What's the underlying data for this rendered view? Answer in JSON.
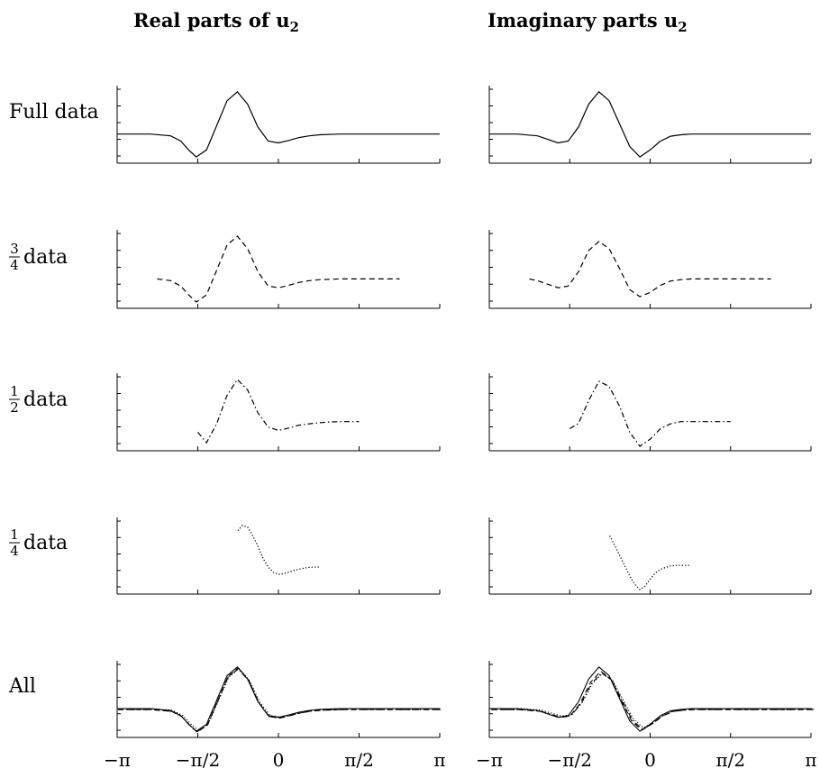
{
  "column_titles": {
    "left_title": "Real parts of ",
    "left_symbol": "u",
    "left_subscript": "2",
    "right_title": "Imaginary parts ",
    "right_symbol": "u",
    "right_subscript": "2"
  },
  "row_labels": [
    {
      "text": "Full data"
    },
    {
      "numerator": "3",
      "denominator": "4",
      "text": " data"
    },
    {
      "numerator": "1",
      "denominator": "2",
      "text": " data"
    },
    {
      "numerator": "1",
      "denominator": "4",
      "text": " data"
    },
    {
      "text": "All"
    }
  ],
  "chart_data": {
    "type": "line",
    "x_range": [
      -3.14159,
      3.14159
    ],
    "x_tick_labels": [
      "−π",
      "−π/2",
      "0",
      "π/2",
      "π"
    ],
    "x_ticks": [
      -3.14159,
      -1.5708,
      0,
      1.5708,
      3.14159
    ],
    "y_range": [
      -0.75,
      1.3
    ],
    "grid": false,
    "line_styles": {
      "full": "solid",
      "three_quarter": "dashed",
      "half": "dash-dot",
      "quarter": "dotted"
    },
    "panels": [
      {
        "row": "Full data",
        "part": "real",
        "style": "full",
        "x": [
          -3.14,
          -2.5,
          -2.1,
          -1.9,
          -1.75,
          -1.6,
          -1.4,
          -1.2,
          -1.0,
          -0.8,
          -0.6,
          -0.4,
          -0.2,
          0.0,
          0.2,
          0.4,
          0.6,
          0.8,
          1.2,
          2.0,
          3.14
        ],
        "y": [
          0,
          0,
          -0.05,
          -0.2,
          -0.45,
          -0.65,
          -0.45,
          0.25,
          0.95,
          1.2,
          0.85,
          0.2,
          -0.2,
          -0.25,
          -0.18,
          -0.1,
          -0.05,
          -0.02,
          0,
          0,
          0
        ]
      },
      {
        "row": "Full data",
        "part": "imag",
        "style": "full",
        "x": [
          -3.14,
          -2.6,
          -2.2,
          -2.0,
          -1.8,
          -1.6,
          -1.4,
          -1.2,
          -1.0,
          -0.8,
          -0.6,
          -0.4,
          -0.2,
          0.0,
          0.2,
          0.4,
          0.6,
          0.8,
          1.2,
          2.0,
          3.14
        ],
        "y": [
          0,
          0,
          -0.05,
          -0.15,
          -0.25,
          -0.2,
          0.2,
          0.85,
          1.2,
          0.95,
          0.3,
          -0.35,
          -0.65,
          -0.45,
          -0.2,
          -0.06,
          -0.02,
          0,
          0,
          0,
          0
        ]
      },
      {
        "row": "3/4 data",
        "part": "real",
        "style": "three_quarter",
        "x": [
          -2.36,
          -2.1,
          -1.9,
          -1.75,
          -1.6,
          -1.4,
          -1.2,
          -1.0,
          -0.8,
          -0.6,
          -0.4,
          -0.2,
          0.0,
          0.2,
          0.4,
          0.6,
          0.8,
          1.2,
          2.0,
          2.36
        ],
        "y": [
          0,
          -0.05,
          -0.2,
          -0.45,
          -0.65,
          -0.45,
          0.25,
          0.95,
          1.2,
          0.85,
          0.2,
          -0.2,
          -0.25,
          -0.18,
          -0.1,
          -0.05,
          -0.02,
          0,
          0,
          0
        ]
      },
      {
        "row": "3/4 data",
        "part": "imag",
        "style": "three_quarter",
        "x": [
          -2.36,
          -2.2,
          -2.0,
          -1.8,
          -1.6,
          -1.4,
          -1.2,
          -1.0,
          -0.8,
          -0.6,
          -0.4,
          -0.2,
          0.0,
          0.2,
          0.4,
          0.6,
          0.8,
          1.2,
          2.0,
          2.36
        ],
        "y": [
          0,
          -0.05,
          -0.15,
          -0.25,
          -0.2,
          0.2,
          0.8,
          1.05,
          0.85,
          0.3,
          -0.3,
          -0.5,
          -0.38,
          -0.18,
          -0.06,
          -0.02,
          0,
          0,
          0,
          0
        ]
      },
      {
        "row": "1/2 data",
        "part": "real",
        "style": "half",
        "x": [
          -1.57,
          -1.4,
          -1.2,
          -1.0,
          -0.8,
          -0.6,
          -0.4,
          -0.2,
          0.0,
          0.2,
          0.4,
          0.6,
          0.8,
          1.0,
          1.2,
          1.57
        ],
        "y": [
          -0.3,
          -0.6,
          -0.05,
          0.75,
          1.2,
          0.9,
          0.25,
          -0.15,
          -0.25,
          -0.18,
          -0.1,
          -0.06,
          -0.03,
          -0.01,
          0,
          0
        ]
      },
      {
        "row": "1/2 data",
        "part": "imag",
        "style": "half",
        "x": [
          -1.57,
          -1.4,
          -1.2,
          -1.0,
          -0.8,
          -0.6,
          -0.4,
          -0.2,
          0.0,
          0.2,
          0.4,
          0.6,
          0.8,
          1.0,
          1.2,
          1.57
        ],
        "y": [
          -0.2,
          -0.05,
          0.6,
          1.15,
          1.0,
          0.45,
          -0.3,
          -0.7,
          -0.5,
          -0.2,
          -0.06,
          0,
          0,
          0,
          0,
          0
        ]
      },
      {
        "row": "1/4 data",
        "part": "real",
        "style": "quarter",
        "x": [
          -0.79,
          -0.7,
          -0.6,
          -0.5,
          -0.4,
          -0.3,
          -0.2,
          -0.1,
          0.0,
          0.1,
          0.2,
          0.3,
          0.4,
          0.5,
          0.6,
          0.7,
          0.79
        ],
        "y": [
          1.0,
          1.15,
          1.1,
          0.85,
          0.55,
          0.2,
          -0.05,
          -0.2,
          -0.26,
          -0.24,
          -0.2,
          -0.15,
          -0.11,
          -0.08,
          -0.06,
          -0.05,
          -0.05
        ]
      },
      {
        "row": "1/4 data",
        "part": "imag",
        "style": "quarter",
        "x": [
          -0.79,
          -0.7,
          -0.6,
          -0.5,
          -0.4,
          -0.3,
          -0.2,
          -0.1,
          0.0,
          0.1,
          0.2,
          0.3,
          0.4,
          0.5,
          0.6,
          0.7,
          0.79
        ],
        "y": [
          0.85,
          0.6,
          0.3,
          0.0,
          -0.3,
          -0.55,
          -0.7,
          -0.6,
          -0.4,
          -0.22,
          -0.12,
          -0.06,
          -0.02,
          0,
          0,
          0,
          0
        ]
      },
      {
        "row": "All",
        "part": "real",
        "style": "overlay",
        "x": [
          -3.14,
          -2.5,
          -2.1,
          -1.9,
          -1.75,
          -1.6,
          -1.4,
          -1.2,
          -1.0,
          -0.8,
          -0.6,
          -0.4,
          -0.2,
          0.0,
          0.2,
          0.4,
          0.6,
          0.8,
          1.2,
          2.0,
          3.14
        ],
        "y": [
          0,
          0,
          -0.05,
          -0.2,
          -0.45,
          -0.65,
          -0.45,
          0.25,
          0.95,
          1.2,
          0.85,
          0.2,
          -0.2,
          -0.25,
          -0.18,
          -0.1,
          -0.05,
          -0.02,
          0,
          0,
          0
        ]
      },
      {
        "row": "All",
        "part": "imag",
        "style": "overlay",
        "x": [
          -3.14,
          -2.6,
          -2.2,
          -2.0,
          -1.8,
          -1.6,
          -1.4,
          -1.2,
          -1.0,
          -0.8,
          -0.6,
          -0.4,
          -0.2,
          0.0,
          0.2,
          0.4,
          0.6,
          0.8,
          1.2,
          2.0,
          3.14
        ],
        "y": [
          0,
          0,
          -0.05,
          -0.15,
          -0.25,
          -0.2,
          0.2,
          0.85,
          1.2,
          0.95,
          0.3,
          -0.35,
          -0.65,
          -0.45,
          -0.2,
          -0.06,
          -0.02,
          0,
          0,
          0,
          0
        ]
      }
    ]
  }
}
